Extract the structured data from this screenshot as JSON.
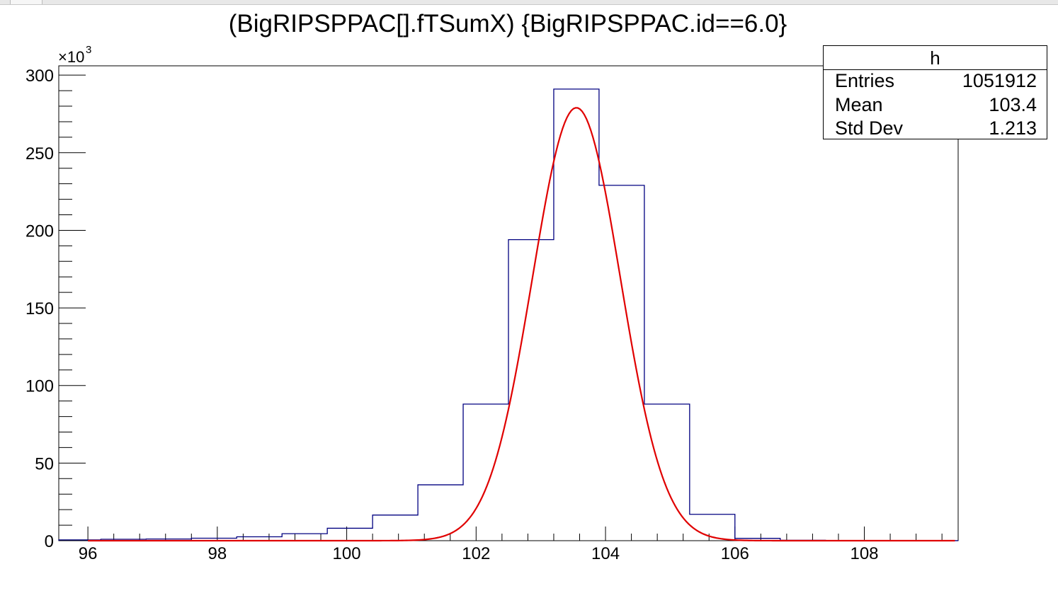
{
  "title": "(BigRIPSPPAC[].fTSumX) {BigRIPSPPAC.id==6.0}",
  "stats_box": {
    "name": "h",
    "rows": [
      {
        "label": "Entries",
        "value": "1051912"
      },
      {
        "label": "Mean",
        "value": "103.4"
      },
      {
        "label": "Std Dev",
        "value": "1.213"
      }
    ]
  },
  "chart_data": {
    "type": "histogram",
    "xlim": [
      95.55,
      109.45
    ],
    "ylim": [
      0,
      306000
    ],
    "y_multiplier_label": "×10",
    "y_multiplier_exp": "3",
    "x_ticks": [
      96,
      98,
      100,
      102,
      104,
      106,
      108
    ],
    "x_tick_labels": [
      "96",
      "98",
      "100",
      "102",
      "104",
      "106",
      "108"
    ],
    "y_ticks": [
      0,
      50000,
      100000,
      150000,
      200000,
      250000,
      300000
    ],
    "y_tick_labels": [
      "0",
      "50",
      "100",
      "150",
      "200",
      "250",
      "300"
    ],
    "bin_edges": [
      95.5,
      96.2,
      96.9,
      97.6,
      98.3,
      99.0,
      99.7,
      100.4,
      101.1,
      101.8,
      102.5,
      103.2,
      103.9,
      104.6,
      105.3,
      106.0,
      106.7,
      107.4,
      108.1,
      108.8,
      109.5
    ],
    "counts": [
      500,
      900,
      1100,
      1600,
      2500,
      4500,
      8000,
      16500,
      36000,
      88000,
      194000,
      291000,
      229000,
      88000,
      17000,
      1500,
      300,
      100,
      50,
      20
    ],
    "fit": {
      "function": "gaus",
      "constant": 279000,
      "mean": 103.55,
      "sigma": 0.68
    },
    "histogram_color": "#000080",
    "fit_color": "#e00000",
    "grid": false
  }
}
